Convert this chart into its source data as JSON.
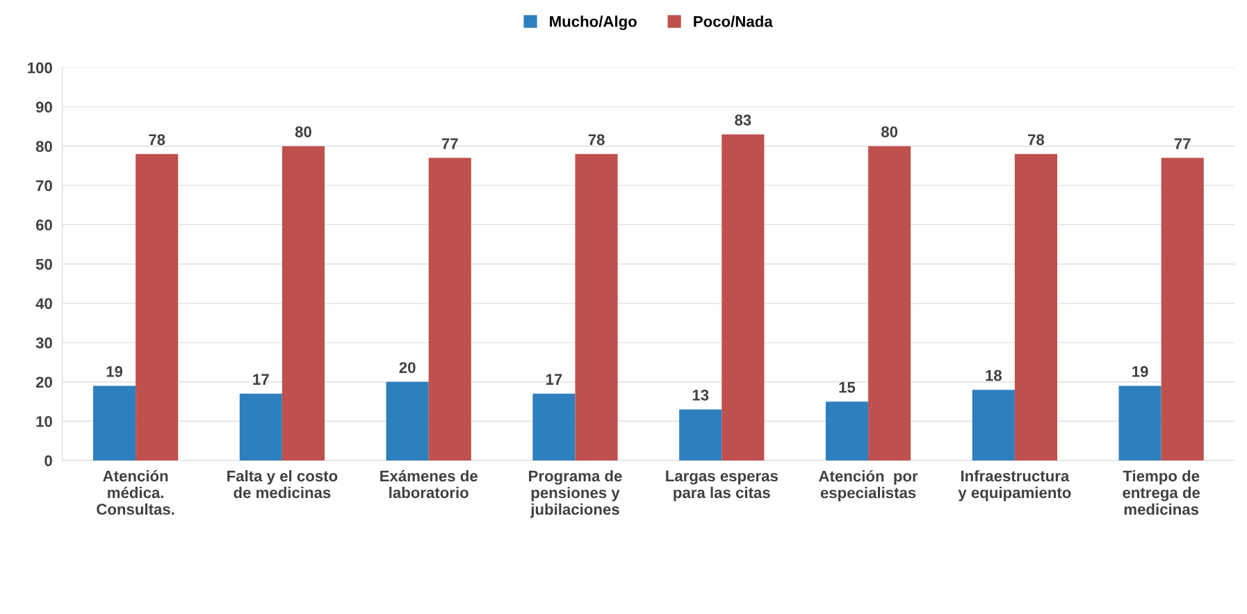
{
  "chart_data": {
    "type": "bar",
    "categories": [
      "Atención\nmédica.\nConsultas.",
      "Falta y el costo\nde medicinas",
      "Exámenes de\nlaboratorio",
      "Programa de\npensiones y\njubilaciones",
      "Largas esperas\npara las citas",
      "Atención  por\nespecialistas",
      "Infraestructura\ny equipamiento",
      "Tiempo de\nentrega de\nmedicinas"
    ],
    "series": [
      {
        "name": "Mucho/Algo",
        "color": "#2e7fbd",
        "values": [
          19,
          17,
          20,
          17,
          13,
          15,
          18,
          19
        ]
      },
      {
        "name": "Poco/Nada",
        "color": "#c0504d",
        "values": [
          78,
          80,
          77,
          78,
          83,
          80,
          78,
          77
        ]
      }
    ],
    "ylim": [
      0,
      100
    ],
    "yticks": [
      0,
      10,
      20,
      30,
      40,
      50,
      60,
      70,
      80,
      90,
      100
    ],
    "grid": "y",
    "legend": "top",
    "data_labels": true
  }
}
